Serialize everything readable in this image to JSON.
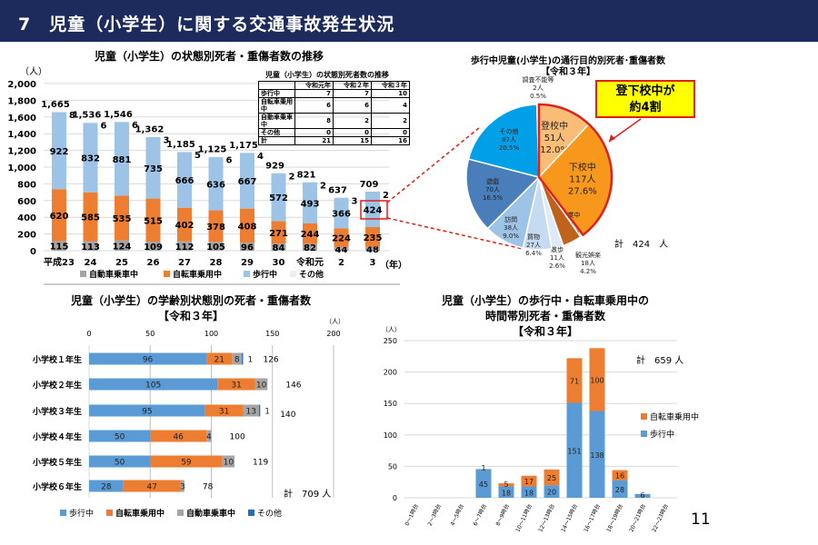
{
  "header": {
    "title": "7　児童（小学生）に関する交通事故発生状況"
  },
  "colors": {
    "car": "#a5a5a5",
    "bike": "#ed7d31",
    "walk_light": "#9dc3e6",
    "walk": "#5b9bd5",
    "other": "#d9d9d9",
    "other_dark": "#1f6fc0",
    "header": "#1c2b5c",
    "highlight": "#e0201a"
  },
  "chart_data": [
    {
      "type": "bar",
      "stacked": true,
      "title": "児童（小学生）の状態別死者・重傷者数の推移",
      "ylabel": "（人）",
      "xlabel": "（年）",
      "ylim": [
        0,
        2000
      ],
      "yticks": [
        "0",
        "200",
        "400",
        "600",
        "800",
        "1,000",
        "1,200",
        "1,400",
        "1,600",
        "1,800",
        "2,000"
      ],
      "categories": [
        "平成23",
        "24",
        "25",
        "26",
        "27",
        "28",
        "29",
        "30",
        "令和元",
        "2",
        "3"
      ],
      "series": [
        {
          "name": "自動車乗車中",
          "values": [
            115,
            113,
            124,
            109,
            112,
            105,
            96,
            84,
            82,
            44,
            48
          ]
        },
        {
          "name": "自転車乗用中",
          "values": [
            620,
            585,
            535,
            515,
            402,
            378,
            408,
            271,
            244,
            224,
            235
          ]
        },
        {
          "name": "歩行中",
          "values": [
            922,
            832,
            881,
            735,
            666,
            636,
            667,
            572,
            493,
            366,
            424
          ]
        },
        {
          "name": "その他",
          "values": [
            8,
            6,
            6,
            3,
            5,
            6,
            4,
            2,
            2,
            3,
            2
          ]
        }
      ],
      "totals": [
        "1,665",
        "1,536",
        "1,546",
        "1,362",
        "1,185",
        "1,125",
        "1,175",
        "929",
        "821",
        "637",
        "709"
      ],
      "grid": true,
      "legend": "bottom"
    },
    {
      "type": "pie",
      "title": "歩行中児童(小学生)の通行目的別死者･重傷者数",
      "subtitle": "【令和３年】",
      "slices": [
        {
          "label": "登校中",
          "count": "51人",
          "pct": "12.0%",
          "value": 51,
          "color": "#f9bd77"
        },
        {
          "label": "下校中",
          "count": "117人",
          "pct": "27.6%",
          "value": 117,
          "color": "#f7981d"
        },
        {
          "label": "作業中",
          "count": "3人",
          "pct": "0.7%",
          "value": 3,
          "color": "#d9d9d9"
        },
        {
          "label": "観光娯楽",
          "count": "18人",
          "pct": "4.2%",
          "value": 18,
          "color": "#c0621b"
        },
        {
          "label": "散歩",
          "count": "11人",
          "pct": "2.6%",
          "value": 11,
          "color": "#deebf7"
        },
        {
          "label": "買物",
          "count": "27人",
          "pct": "6.4%",
          "value": 27,
          "color": "#c6dbef"
        },
        {
          "label": "訪問",
          "count": "38人",
          "pct": "9.0%",
          "value": 38,
          "color": "#9dc3e6"
        },
        {
          "label": "遊戯",
          "count": "70人",
          "pct": "16.5%",
          "value": 70,
          "color": "#4a7ebb"
        },
        {
          "label": "その他",
          "count": "87人",
          "pct": "20.5%",
          "value": 87,
          "color": "#00a0e9"
        },
        {
          "label": "調査不能等",
          "count": "2人",
          "pct": "0.5%",
          "value": 2,
          "color": "#ffffff"
        }
      ],
      "total_note": "計　424　人",
      "callout": [
        "登下校中が",
        "約4割"
      ]
    },
    {
      "type": "bar",
      "orientation": "horizontal",
      "stacked": true,
      "title": "児童（小学生）の学齢別状態別の死者・重傷者数",
      "subtitle": "【令和３年】",
      "unit": "（人）",
      "xlim": [
        0,
        200
      ],
      "xticks": [
        "0",
        "50",
        "100",
        "150",
        "200"
      ],
      "categories": [
        "小学校１年生",
        "小学校２年生",
        "小学校３年生",
        "小学校４年生",
        "小学校５年生",
        "小学校６年生"
      ],
      "series": [
        {
          "name": "歩行中",
          "values": [
            96,
            105,
            95,
            50,
            50,
            28
          ]
        },
        {
          "name": "自転車乗用中",
          "values": [
            21,
            31,
            31,
            46,
            59,
            47
          ]
        },
        {
          "name": "自動車乗車中",
          "values": [
            8,
            10,
            13,
            4,
            10,
            3
          ]
        },
        {
          "name": "その他",
          "values": [
            1,
            0,
            1,
            0,
            0,
            0
          ]
        }
      ],
      "totals": [
        126,
        146,
        140,
        100,
        119,
        78
      ],
      "total_note": "計　709 人",
      "legend": "bottom"
    },
    {
      "type": "bar",
      "stacked": true,
      "title": [
        "児童（小学生）の歩行中・自転車乗用中の",
        "時間帯別死者・重傷者数",
        "【令和３年】"
      ],
      "ylabel": "（人）",
      "ylim": [
        0,
        250
      ],
      "yticks": [
        "0",
        "50",
        "100",
        "150",
        "200",
        "250"
      ],
      "categories": [
        "0～1時台",
        "2～3時台",
        "4～5時台",
        "6～7時台",
        "8～9時台",
        "10～11時台",
        "12～13時台",
        "14～15時台",
        "16～17時台",
        "18～19時台",
        "20～21時台",
        "22～23時台"
      ],
      "series": [
        {
          "name": "歩行中",
          "values": [
            0,
            0,
            0,
            45,
            18,
            18,
            20,
            151,
            138,
            28,
            6,
            0
          ]
        },
        {
          "name": "自転車乗用中",
          "values": [
            0,
            0,
            0,
            1,
            5,
            17,
            25,
            71,
            100,
            16,
            0,
            0
          ]
        }
      ],
      "total_note": "計　659 人",
      "legend": "right"
    }
  ],
  "table": {
    "title": "児童（小学生）の状態別死者数の推移",
    "headers": [
      "",
      "令和元年",
      "令和２年",
      "令和３年"
    ],
    "rows": [
      [
        "歩行中",
        "7",
        "7",
        "10"
      ],
      [
        "自転車乗用中",
        "6",
        "6",
        "4"
      ],
      [
        "自動車乗車中",
        "8",
        "2",
        "2"
      ],
      [
        "その他",
        "0",
        "0",
        "0"
      ],
      [
        "計",
        "21",
        "15",
        "16"
      ]
    ]
  },
  "page_number": "11"
}
